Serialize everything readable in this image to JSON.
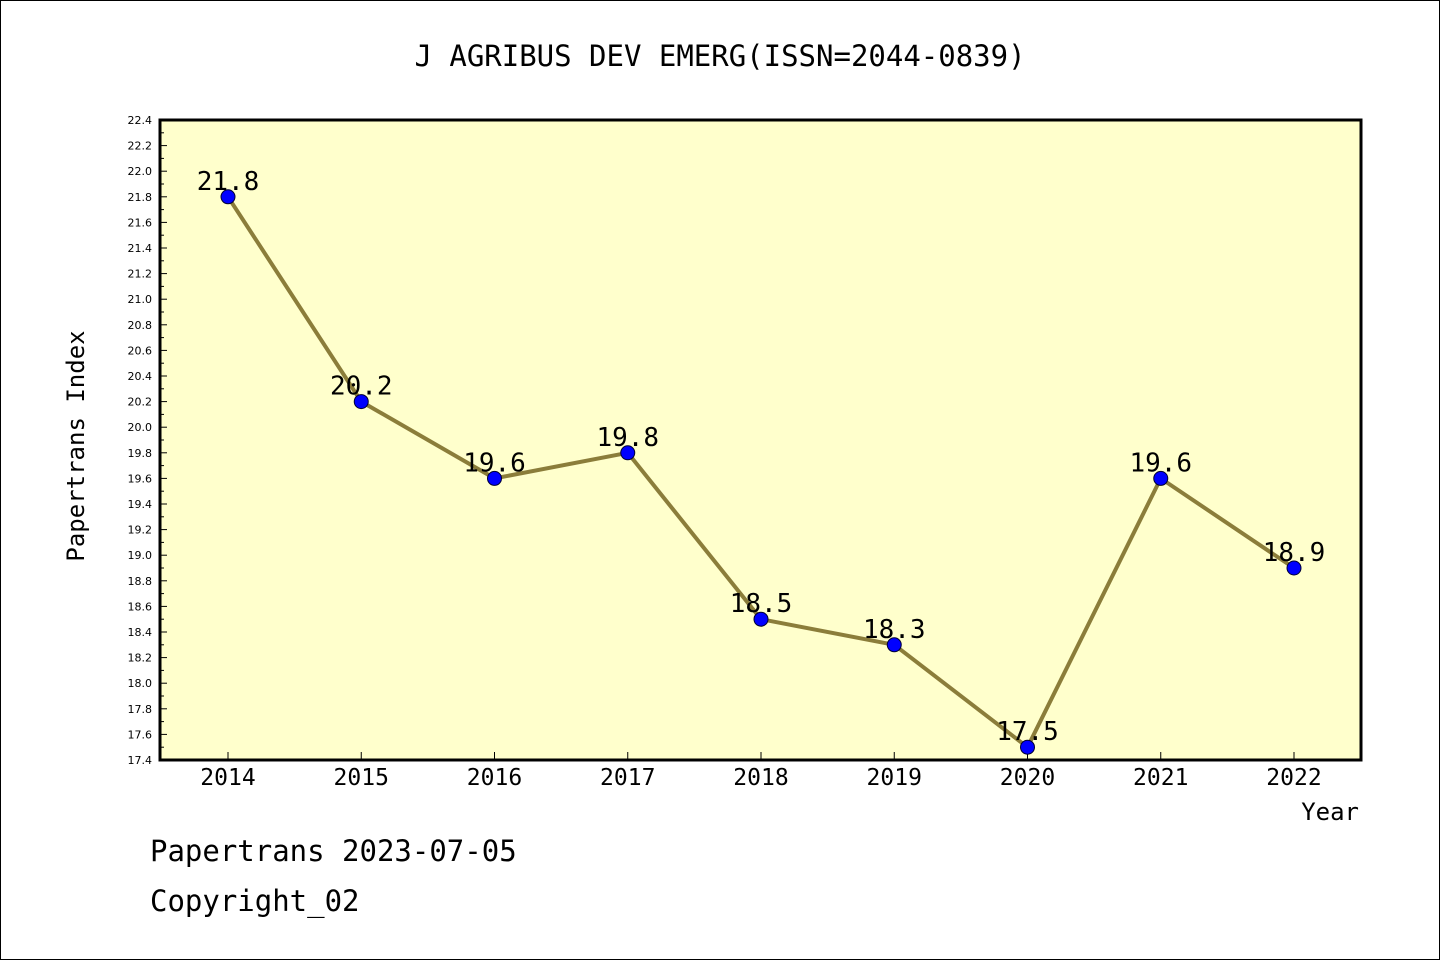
{
  "chart_data": {
    "type": "line",
    "title": "J AGRIBUS DEV EMERG(ISSN=2044-0839)",
    "xlabel": "Year",
    "ylabel": "Papertrans Index",
    "ylim": [
      17.4,
      22.4
    ],
    "yticks": [
      "17.4",
      "17.6",
      "17.8",
      "18.0",
      "18.2",
      "18.4",
      "18.6",
      "18.8",
      "19.0",
      "19.2",
      "19.4",
      "19.6",
      "19.8",
      "20.0",
      "20.2",
      "20.4",
      "20.6",
      "20.8",
      "21.0",
      "21.2",
      "21.4",
      "21.6",
      "21.8",
      "22.0",
      "22.2",
      "22.4"
    ],
    "categories": [
      "2014",
      "2015",
      "2016",
      "2017",
      "2018",
      "2019",
      "2020",
      "2021",
      "2022"
    ],
    "values": [
      21.8,
      20.2,
      19.6,
      19.8,
      18.5,
      18.3,
      17.5,
      19.6,
      18.9
    ],
    "data_labels": [
      "21.8",
      "20.2",
      "19.6",
      "19.8",
      "18.5",
      "18.3",
      "17.5",
      "19.6",
      "18.9"
    ],
    "colors": {
      "plot_bg": "#ffffcc",
      "line": "#8b7d3a",
      "marker": "#0000ff"
    },
    "grid": false,
    "legend": "none"
  },
  "footer": {
    "line1": "Papertrans 2023-07-05",
    "line2": "Copyright_02"
  }
}
